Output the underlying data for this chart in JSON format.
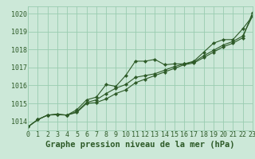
{
  "title": "Graphe pression niveau de la mer (hPa)",
  "background_color": "#cce8d8",
  "grid_color": "#99ccb0",
  "line_color": "#2d5a27",
  "x_values": [
    0,
    1,
    2,
    3,
    4,
    5,
    6,
    7,
    8,
    9,
    10,
    11,
    12,
    13,
    14,
    15,
    16,
    17,
    18,
    19,
    20,
    21,
    22,
    23
  ],
  "line1": [
    1013.7,
    1014.1,
    1014.35,
    1014.4,
    1014.35,
    1014.65,
    1015.2,
    1015.35,
    1016.05,
    1015.95,
    1016.55,
    1017.35,
    1017.35,
    1017.45,
    1017.15,
    1017.2,
    1017.2,
    1017.35,
    1017.85,
    1018.35,
    1018.55,
    1018.55,
    1019.15,
    1019.85
  ],
  "line2": [
    1013.7,
    1014.1,
    1014.35,
    1014.4,
    1014.35,
    1014.55,
    1015.05,
    1015.2,
    1015.55,
    1015.85,
    1016.05,
    1016.45,
    1016.55,
    1016.65,
    1016.85,
    1017.05,
    1017.2,
    1017.3,
    1017.65,
    1017.95,
    1018.25,
    1018.45,
    1018.75,
    1019.85
  ],
  "line3": [
    1013.7,
    1014.1,
    1014.35,
    1014.37,
    1014.35,
    1014.5,
    1015.0,
    1015.05,
    1015.25,
    1015.55,
    1015.75,
    1016.15,
    1016.35,
    1016.55,
    1016.75,
    1016.95,
    1017.15,
    1017.25,
    1017.55,
    1017.85,
    1018.15,
    1018.35,
    1018.65,
    1020.05
  ],
  "ylim": [
    1013.5,
    1020.4
  ],
  "yticks": [
    1014,
    1015,
    1016,
    1017,
    1018,
    1019,
    1020
  ],
  "xlim": [
    0,
    23
  ],
  "title_fontsize": 7.5,
  "tick_fontsize": 6.0
}
